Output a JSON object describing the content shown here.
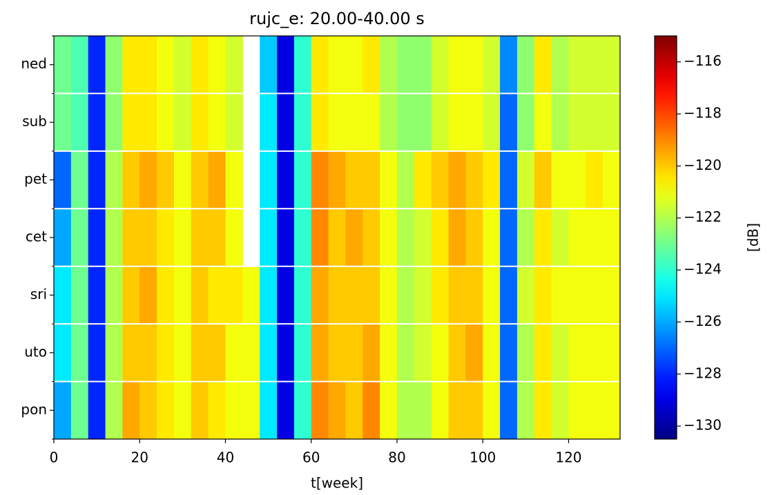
{
  "chart_data": {
    "type": "heatmap",
    "title": "rujc_e: 20.00-40.00 s",
    "xlabel": "t[week]",
    "colormap": "jet",
    "categories": [
      "pon",
      "uto",
      "sri",
      "cet",
      "pet",
      "sub",
      "ned"
    ],
    "bins": [
      0,
      4,
      8,
      12,
      16,
      20,
      24,
      28,
      32,
      36,
      40,
      44,
      48,
      52,
      56,
      60,
      64,
      68,
      72,
      76,
      80,
      84,
      88,
      92,
      96,
      100,
      104,
      108,
      112,
      116,
      120,
      124,
      128,
      132
    ],
    "values": [
      [
        -126,
        -123,
        -128,
        -122,
        -119.5,
        -120,
        -120.5,
        -121,
        -120,
        -120.5,
        -121,
        -121,
        -125,
        -129,
        -124,
        -119,
        -119.5,
        -120,
        -119,
        -121,
        -122,
        -122,
        -121,
        -120,
        -120,
        -121,
        -127,
        -122,
        -120.5,
        -121.5,
        -121,
        -121,
        -121
      ],
      [
        -125,
        -123,
        -128,
        -122,
        -120,
        -120,
        -120.5,
        -121,
        -120,
        -120,
        -121,
        -121,
        -125,
        -129,
        -124,
        -119.5,
        -120,
        -120,
        -119.5,
        -121,
        -122,
        -121.5,
        -121,
        -120,
        -119.5,
        -121,
        -127,
        -122,
        -120.5,
        -121.5,
        -121,
        -121,
        -121
      ],
      [
        -125,
        -123,
        -128,
        -122,
        -120,
        -119.5,
        -120.5,
        -121,
        -120,
        -120.5,
        -120.5,
        -121,
        -125,
        -129,
        -124,
        -119.5,
        -120,
        -120,
        -120,
        -121,
        -122,
        -121.5,
        -120.5,
        -120,
        -120,
        -121,
        -127,
        -121.5,
        -120.5,
        -121,
        -121,
        -121,
        -121
      ],
      [
        -126,
        -123,
        -128,
        -122,
        -120,
        -120,
        -120.5,
        -121,
        -120,
        -120,
        -121,
        null,
        -125,
        -129,
        -124,
        -119,
        -120,
        -119.5,
        -120,
        -121,
        -122,
        -121.5,
        -120.5,
        -119.5,
        -120,
        -121,
        -127,
        -122,
        -120.5,
        -121.5,
        -121,
        -121,
        -121
      ],
      [
        -127,
        -123,
        -128,
        -122,
        -120,
        -119.5,
        -120,
        -121,
        -120,
        -119.5,
        -121,
        null,
        -125,
        -129,
        -124,
        -119,
        -119.5,
        -120,
        -120,
        -121,
        -122,
        -120.5,
        -120,
        -119.5,
        -120,
        -120.5,
        -127,
        -121.5,
        -120,
        -121,
        -121,
        -120.5,
        -121
      ],
      [
        -123,
        -123.5,
        -128,
        -122.5,
        -120.5,
        -120.5,
        -121,
        -121.5,
        -120.5,
        -121,
        -121.5,
        null,
        -125,
        -129,
        -124,
        -120.5,
        -121,
        -121,
        -121,
        -122,
        -122.5,
        -122.5,
        -121.5,
        -121,
        -121,
        -121.5,
        -127,
        -122.5,
        -121,
        -122,
        -121.5,
        -121.5,
        -121.5
      ],
      [
        -123,
        -123.5,
        -128,
        -122.5,
        -120.5,
        -120.5,
        -121,
        -121.5,
        -120.5,
        -121,
        -121.5,
        null,
        -125.5,
        -129,
        -124,
        -120.5,
        -121,
        -121,
        -120.5,
        -122,
        -122.5,
        -122.5,
        -121.5,
        -121,
        -121,
        -121.5,
        -126.5,
        -122.5,
        -120.5,
        -122,
        -121.5,
        -121.5,
        -121.5
      ]
    ],
    "xlim": [
      0,
      132
    ],
    "xticks": [
      0,
      20,
      40,
      60,
      80,
      100,
      120
    ],
    "colorbar": {
      "label": "[dB]",
      "lim": [
        -130.5,
        -115
      ],
      "ticks": [
        {
          "value": -116,
          "label": "−116"
        },
        {
          "value": -118,
          "label": "−118"
        },
        {
          "value": -120,
          "label": "−120"
        },
        {
          "value": -122,
          "label": "−122"
        },
        {
          "value": -124,
          "label": "−124"
        },
        {
          "value": -126,
          "label": "−126"
        },
        {
          "value": -128,
          "label": "−128"
        },
        {
          "value": -130,
          "label": "−130"
        }
      ]
    }
  }
}
